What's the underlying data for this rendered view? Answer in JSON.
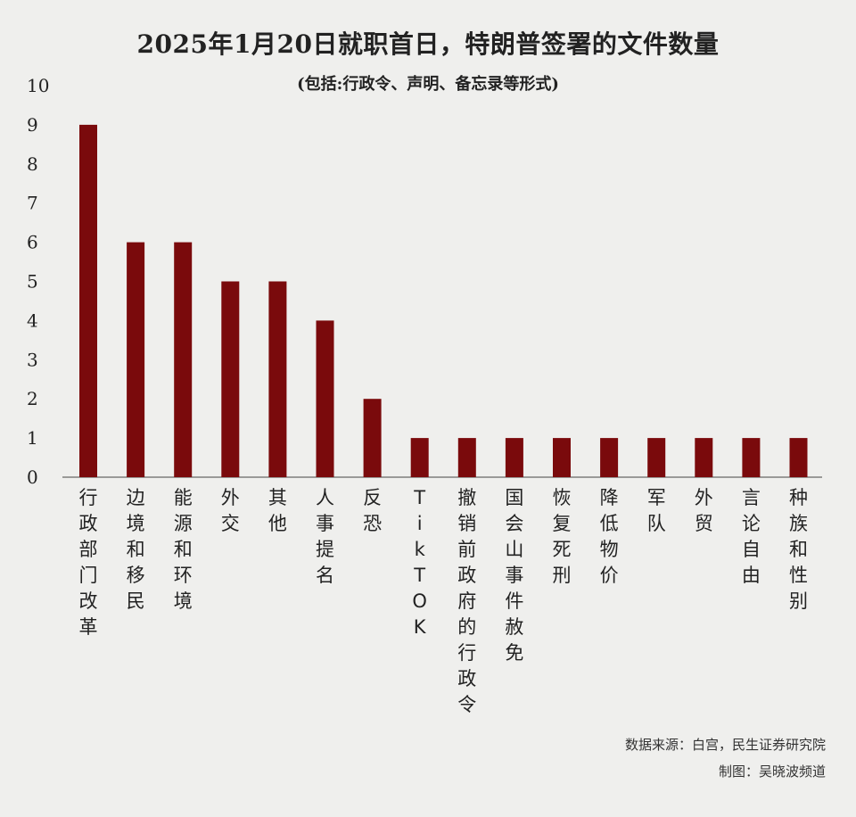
{
  "header": {
    "title": "2025年1月20日就职首日，特朗普签署的文件数量",
    "subtitle": "(包括:行政令、声明、备忘录等形式)"
  },
  "footer": {
    "source": "数据来源：白宫，民生证券研究院",
    "credit": "制图：吴晓波频道"
  },
  "chart_data": {
    "type": "bar",
    "categories": [
      "行政部门改革",
      "边境和移民",
      "能源和环境",
      "外交",
      "其他",
      "人事提名",
      "反恐",
      "TikTOK",
      "撤销前政府的行政令",
      "国会山事件赦免",
      "恢复死刑",
      "降低物价",
      "军队",
      "外贸",
      "言论自由",
      "种族和性别"
    ],
    "values": [
      9,
      6,
      6,
      5,
      5,
      4,
      2,
      1,
      1,
      1,
      1,
      1,
      1,
      1,
      1,
      1
    ],
    "ylim": [
      0,
      10
    ],
    "yticks": [
      "0",
      "1",
      "2",
      "3",
      "4",
      "5",
      "6",
      "7",
      "8",
      "9",
      "10"
    ],
    "bar_color": "#7a0a0c",
    "grid": false
  }
}
